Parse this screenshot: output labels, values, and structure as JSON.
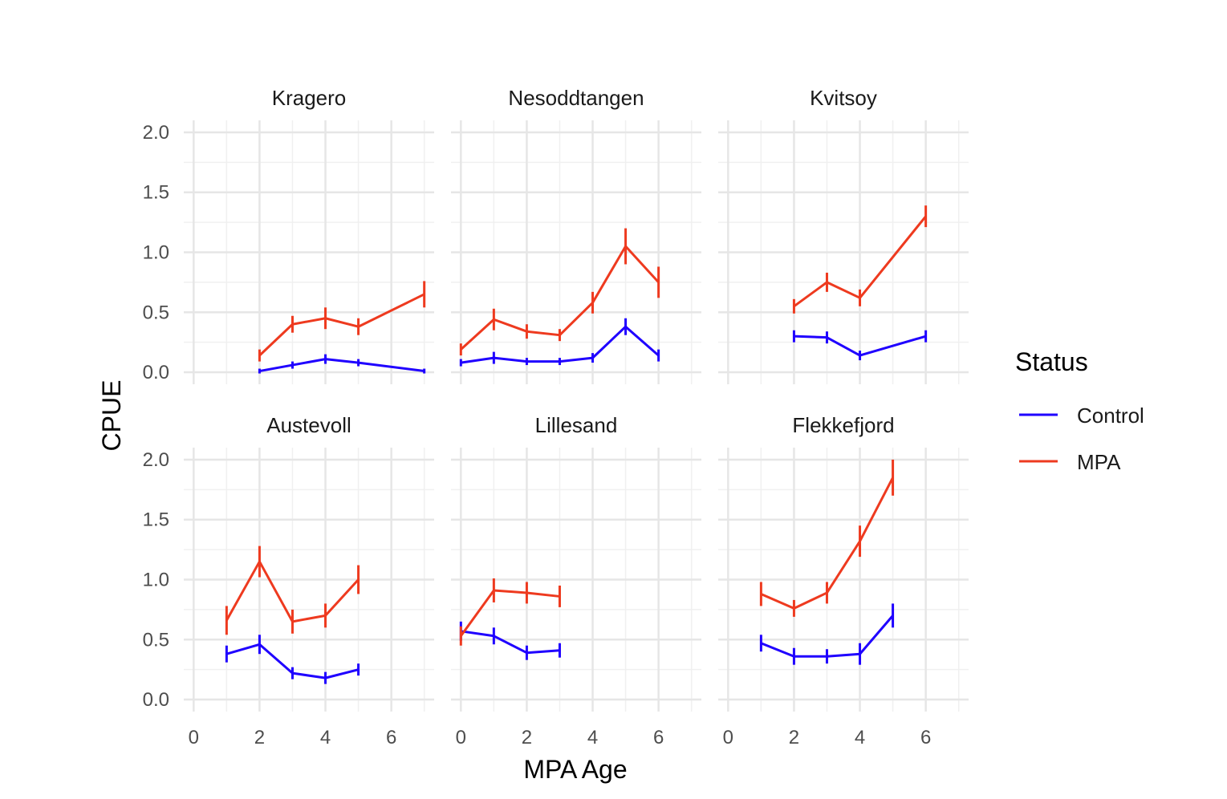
{
  "chart_data": {
    "type": "line",
    "xlabel": "MPA Age",
    "ylabel": "CPUE",
    "xlim": [
      -0.3,
      7.3
    ],
    "ylim": [
      -0.1,
      2.1
    ],
    "xticks": [
      "0",
      "2",
      "4",
      "6"
    ],
    "yticks": [
      "0.0",
      "0.5",
      "1.0",
      "1.5",
      "2.0"
    ],
    "legend": {
      "title": "Status",
      "position": "right",
      "entries": [
        {
          "name": "Control",
          "color": "#1f00ff"
        },
        {
          "name": "MPA",
          "color": "#ee3a1f"
        }
      ]
    },
    "panels": [
      {
        "title": "Kragero",
        "series": [
          {
            "name": "Control",
            "points": [
              {
                "x": 2,
                "y": 0.01,
                "err": 0.02
              },
              {
                "x": 3,
                "y": 0.06,
                "err": 0.03
              },
              {
                "x": 4,
                "y": 0.11,
                "err": 0.04
              },
              {
                "x": 5,
                "y": 0.08,
                "err": 0.03
              },
              {
                "x": 7,
                "y": 0.01,
                "err": 0.02
              }
            ]
          },
          {
            "name": "MPA",
            "points": [
              {
                "x": 2,
                "y": 0.14,
                "err": 0.05
              },
              {
                "x": 3,
                "y": 0.4,
                "err": 0.07
              },
              {
                "x": 4,
                "y": 0.45,
                "err": 0.09
              },
              {
                "x": 5,
                "y": 0.38,
                "err": 0.07
              },
              {
                "x": 7,
                "y": 0.65,
                "err": 0.11
              }
            ]
          }
        ]
      },
      {
        "title": "Nesoddtangen",
        "series": [
          {
            "name": "Control",
            "points": [
              {
                "x": 0,
                "y": 0.08,
                "err": 0.03
              },
              {
                "x": 1,
                "y": 0.12,
                "err": 0.05
              },
              {
                "x": 2,
                "y": 0.09,
                "err": 0.03
              },
              {
                "x": 3,
                "y": 0.09,
                "err": 0.03
              },
              {
                "x": 4,
                "y": 0.12,
                "err": 0.04
              },
              {
                "x": 5,
                "y": 0.38,
                "err": 0.07
              },
              {
                "x": 6,
                "y": 0.14,
                "err": 0.05
              }
            ]
          },
          {
            "name": "MPA",
            "points": [
              {
                "x": 0,
                "y": 0.19,
                "err": 0.05
              },
              {
                "x": 1,
                "y": 0.44,
                "err": 0.09
              },
              {
                "x": 2,
                "y": 0.34,
                "err": 0.06
              },
              {
                "x": 3,
                "y": 0.31,
                "err": 0.05
              },
              {
                "x": 4,
                "y": 0.58,
                "err": 0.09
              },
              {
                "x": 5,
                "y": 1.05,
                "err": 0.15
              },
              {
                "x": 6,
                "y": 0.75,
                "err": 0.13
              }
            ]
          }
        ]
      },
      {
        "title": "Kvitsoy",
        "series": [
          {
            "name": "Control",
            "points": [
              {
                "x": 2,
                "y": 0.3,
                "err": 0.05
              },
              {
                "x": 3,
                "y": 0.29,
                "err": 0.05
              },
              {
                "x": 4,
                "y": 0.14,
                "err": 0.04
              },
              {
                "x": 6,
                "y": 0.3,
                "err": 0.05
              }
            ]
          },
          {
            "name": "MPA",
            "points": [
              {
                "x": 2,
                "y": 0.55,
                "err": 0.06
              },
              {
                "x": 3,
                "y": 0.75,
                "err": 0.08
              },
              {
                "x": 4,
                "y": 0.62,
                "err": 0.07
              },
              {
                "x": 6,
                "y": 1.3,
                "err": 0.09
              }
            ]
          }
        ]
      },
      {
        "title": "Austevoll",
        "series": [
          {
            "name": "Control",
            "points": [
              {
                "x": 1,
                "y": 0.38,
                "err": 0.07
              },
              {
                "x": 2,
                "y": 0.46,
                "err": 0.08
              },
              {
                "x": 3,
                "y": 0.22,
                "err": 0.05
              },
              {
                "x": 4,
                "y": 0.18,
                "err": 0.05
              },
              {
                "x": 5,
                "y": 0.25,
                "err": 0.05
              }
            ]
          },
          {
            "name": "MPA",
            "points": [
              {
                "x": 1,
                "y": 0.66,
                "err": 0.12
              },
              {
                "x": 2,
                "y": 1.15,
                "err": 0.13
              },
              {
                "x": 3,
                "y": 0.65,
                "err": 0.1
              },
              {
                "x": 4,
                "y": 0.7,
                "err": 0.1
              },
              {
                "x": 5,
                "y": 1.0,
                "err": 0.12
              }
            ]
          }
        ]
      },
      {
        "title": "Lillesand",
        "series": [
          {
            "name": "Control",
            "points": [
              {
                "x": 0,
                "y": 0.57,
                "err": 0.08
              },
              {
                "x": 1,
                "y": 0.53,
                "err": 0.07
              },
              {
                "x": 2,
                "y": 0.39,
                "err": 0.06
              },
              {
                "x": 3,
                "y": 0.41,
                "err": 0.06
              }
            ]
          },
          {
            "name": "MPA",
            "points": [
              {
                "x": 0,
                "y": 0.53,
                "err": 0.08
              },
              {
                "x": 1,
                "y": 0.91,
                "err": 0.1
              },
              {
                "x": 2,
                "y": 0.89,
                "err": 0.09
              },
              {
                "x": 3,
                "y": 0.86,
                "err": 0.09
              }
            ]
          }
        ]
      },
      {
        "title": "Flekkefjord",
        "series": [
          {
            "name": "Control",
            "points": [
              {
                "x": 1,
                "y": 0.47,
                "err": 0.07
              },
              {
                "x": 2,
                "y": 0.36,
                "err": 0.07
              },
              {
                "x": 3,
                "y": 0.36,
                "err": 0.06
              },
              {
                "x": 4,
                "y": 0.38,
                "err": 0.09
              },
              {
                "x": 5,
                "y": 0.7,
                "err": 0.1
              }
            ]
          },
          {
            "name": "MPA",
            "points": [
              {
                "x": 1,
                "y": 0.88,
                "err": 0.1
              },
              {
                "x": 2,
                "y": 0.76,
                "err": 0.07
              },
              {
                "x": 3,
                "y": 0.89,
                "err": 0.09
              },
              {
                "x": 4,
                "y": 1.32,
                "err": 0.13
              },
              {
                "x": 5,
                "y": 1.85,
                "err": 0.15
              }
            ]
          }
        ]
      }
    ]
  }
}
